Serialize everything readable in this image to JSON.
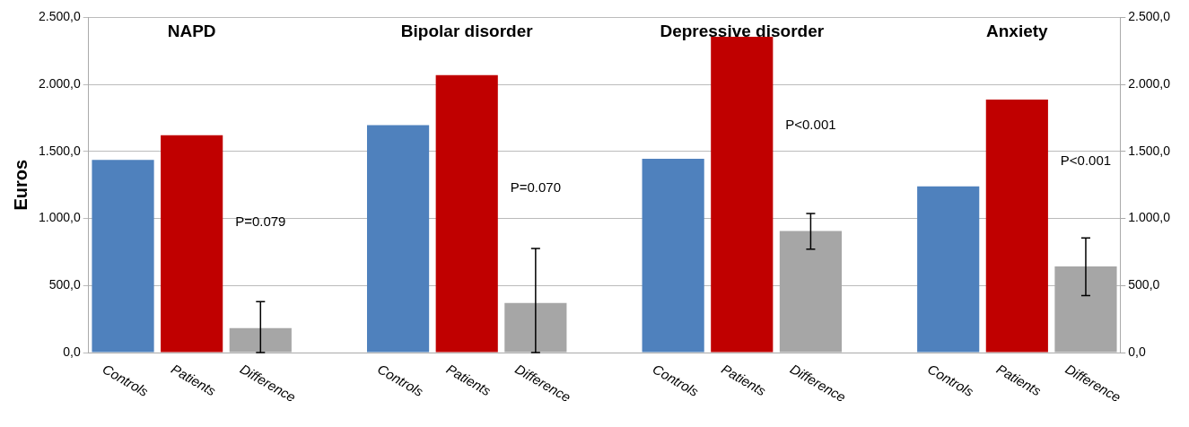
{
  "chart_data": {
    "type": "bar",
    "ylabel": "Euros",
    "categories": [
      "Controls",
      "Patients",
      "Difference",
      null,
      "Controls",
      "Patients",
      "Difference",
      null,
      "Controls",
      "Patients",
      "Difference",
      null,
      "Controls",
      "Patients",
      "Difference"
    ],
    "values": [
      1437,
      1621,
      183,
      null,
      1696,
      2069,
      369,
      null,
      1446,
      2355,
      906,
      null,
      1239,
      1887,
      642
    ],
    "colors": [
      "#4f81bd",
      "#c00000",
      "#a6a6a6",
      null,
      "#4f81bd",
      "#c00000",
      "#a6a6a6",
      null,
      "#4f81bd",
      "#c00000",
      "#a6a6a6",
      null,
      "#4f81bd",
      "#c00000",
      "#a6a6a6"
    ],
    "errors": [
      null,
      null,
      [
        0,
        380
      ],
      null,
      null,
      null,
      [
        0,
        777
      ],
      null,
      null,
      null,
      [
        772,
        1038
      ],
      null,
      null,
      null,
      [
        425,
        855
      ]
    ],
    "ylim": [
      0,
      2500
    ],
    "yticks": [
      {
        "value": 0,
        "label": "0,0"
      },
      {
        "value": 500,
        "label": "500,0"
      },
      {
        "value": 1000,
        "label": "1.000,0"
      },
      {
        "value": 1500,
        "label": "1.500,0"
      },
      {
        "value": 2000,
        "label": "2.000,0"
      },
      {
        "value": 2500,
        "label": "2.500,0"
      }
    ],
    "y2lim": [
      0,
      2500
    ],
    "y2ticks": [
      {
        "value": 0,
        "label": "0,0"
      },
      {
        "value": 500,
        "label": "500,0"
      },
      {
        "value": 1000,
        "label": "1.000,0"
      },
      {
        "value": 1500,
        "label": "1.500,0"
      },
      {
        "value": 2000,
        "label": "2.000,0"
      },
      {
        "value": 2500,
        "label": "2.500,0"
      }
    ],
    "annotations": [
      "NAPD",
      "Bipolar disorder",
      "Depressive disorder",
      "Anxiety",
      "P=0.079",
      "P=0.070",
      "P<0.001",
      "P<0.001"
    ],
    "grid": "y",
    "legend": false
  }
}
